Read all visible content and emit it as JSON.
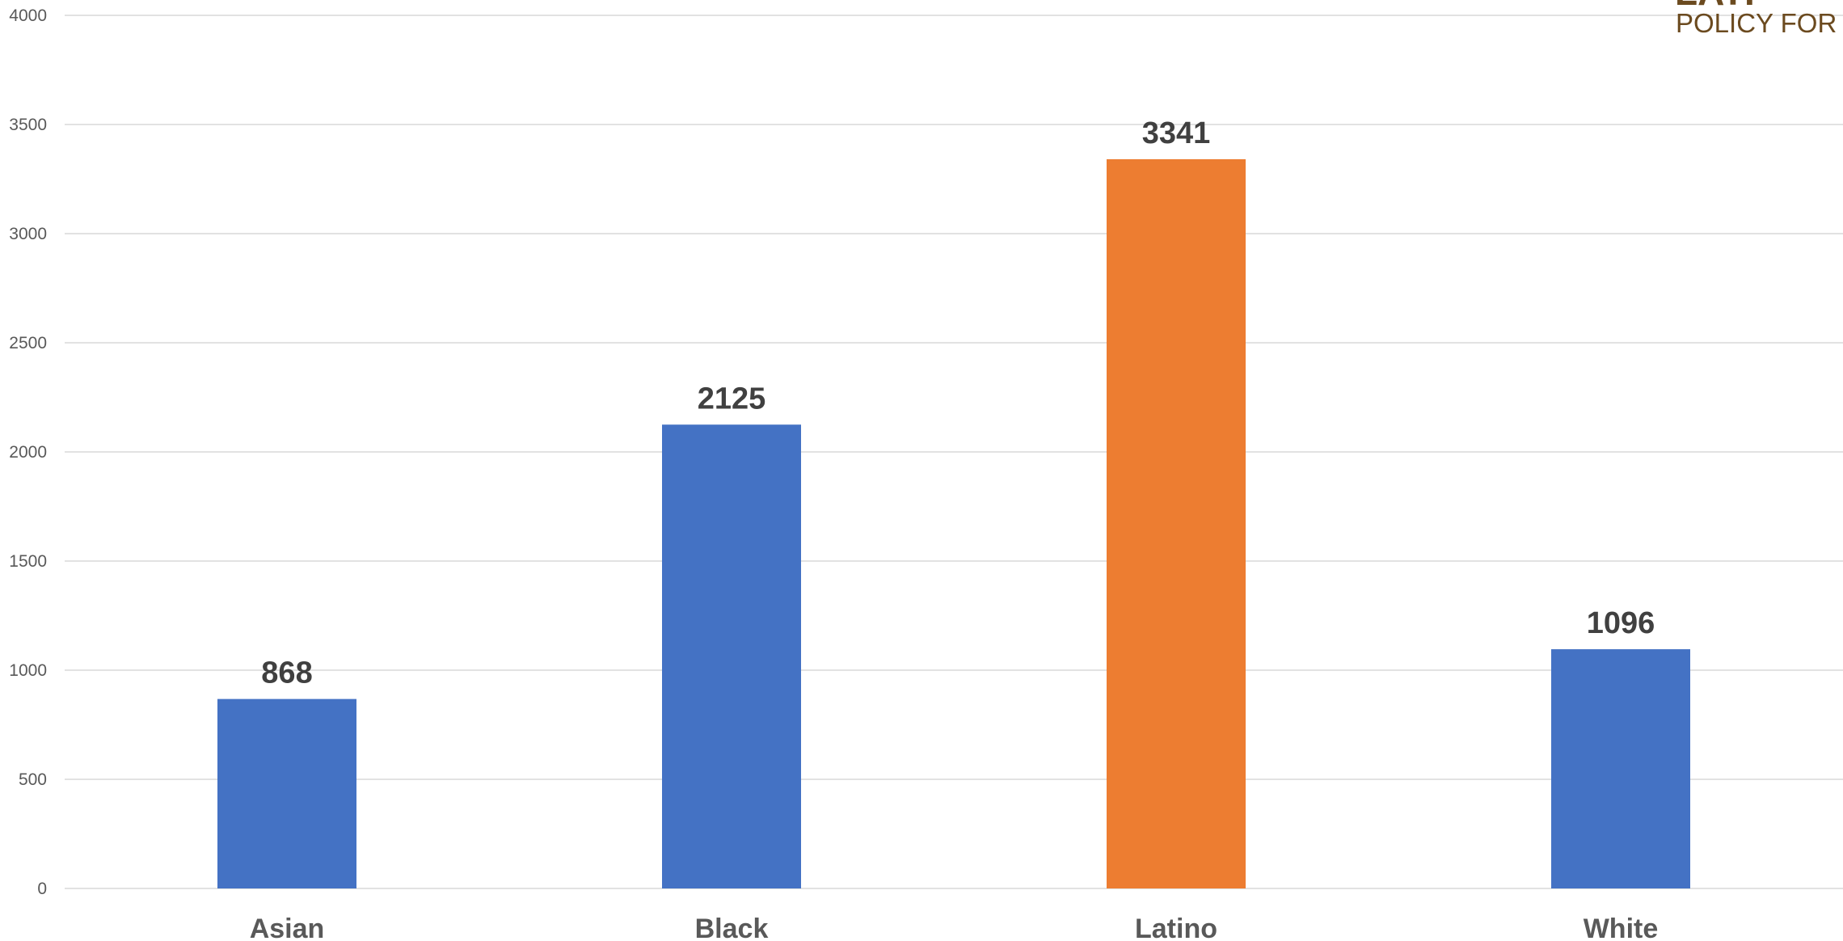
{
  "chart_data": {
    "type": "bar",
    "categories": [
      "Asian",
      "Black",
      "Latino",
      "White"
    ],
    "values": [
      868,
      2125,
      3341,
      1096
    ],
    "bar_colors": [
      "#4472C4",
      "#4472C4",
      "#ED7D31",
      "#4472C4"
    ],
    "ylim": [
      0,
      4000
    ],
    "yticks": [
      0,
      500,
      1000,
      1500,
      2000,
      2500,
      3000,
      3500,
      4000
    ],
    "grid": true,
    "title": "",
    "xlabel": "",
    "ylabel": ""
  },
  "logo": {
    "line1": "LATI",
    "line2": "POLICY FOR"
  }
}
